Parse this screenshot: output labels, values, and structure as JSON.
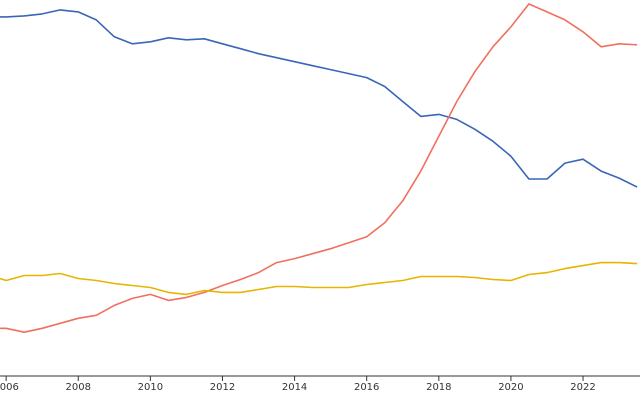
{
  "chart_data": {
    "type": "line",
    "x": [
      2005.83,
      2006,
      2006.5,
      2007,
      2007.5,
      2008,
      2008.5,
      2009,
      2009.5,
      2010,
      2010.5,
      2011,
      2011.5,
      2012,
      2012.5,
      2013,
      2013.5,
      2014,
      2014.5,
      2015,
      2015.5,
      2016,
      2016.5,
      2017,
      2017.5,
      2018,
      2018.5,
      2019,
      2019.5,
      2020,
      2020.5,
      2021,
      2021.5,
      2022,
      2022.5,
      2023,
      2023.5
    ],
    "series": [
      {
        "color": "#3a66b8",
        "values": [
          361,
          361,
          362,
          364,
          368,
          366,
          358,
          341,
          334,
          336,
          340,
          338,
          339,
          334,
          329,
          324,
          320,
          316,
          312,
          308,
          304,
          300,
          291,
          276,
          261,
          263,
          258,
          248,
          236,
          221,
          198,
          198,
          214,
          218,
          206,
          199,
          190
        ]
      },
      {
        "color": "#f0705e",
        "values": [
          48,
          48,
          44,
          48,
          53,
          58,
          61,
          71,
          78,
          82,
          76,
          79,
          84,
          91,
          97,
          104,
          114,
          118,
          123,
          128,
          134,
          140,
          154,
          176,
          206,
          241,
          276,
          306,
          331,
          351,
          374,
          366,
          358,
          346,
          331,
          334,
          333
        ]
      },
      {
        "color": "#e8b400",
        "values": [
          98,
          96,
          101,
          101,
          103,
          98,
          96,
          93,
          91,
          89,
          84,
          82,
          86,
          84,
          84,
          87,
          90,
          90,
          89,
          89,
          89,
          92,
          94,
          96,
          100,
          100,
          100,
          99,
          97,
          96,
          102,
          104,
          108,
          111,
          114,
          114,
          113
        ]
      }
    ],
    "xlim": [
      2005.83,
      2023.58
    ],
    "xticks": [
      2006,
      2008,
      2010,
      2012,
      2014,
      2016,
      2018,
      2020,
      2022
    ],
    "ylim": [
      0,
      378
    ]
  }
}
